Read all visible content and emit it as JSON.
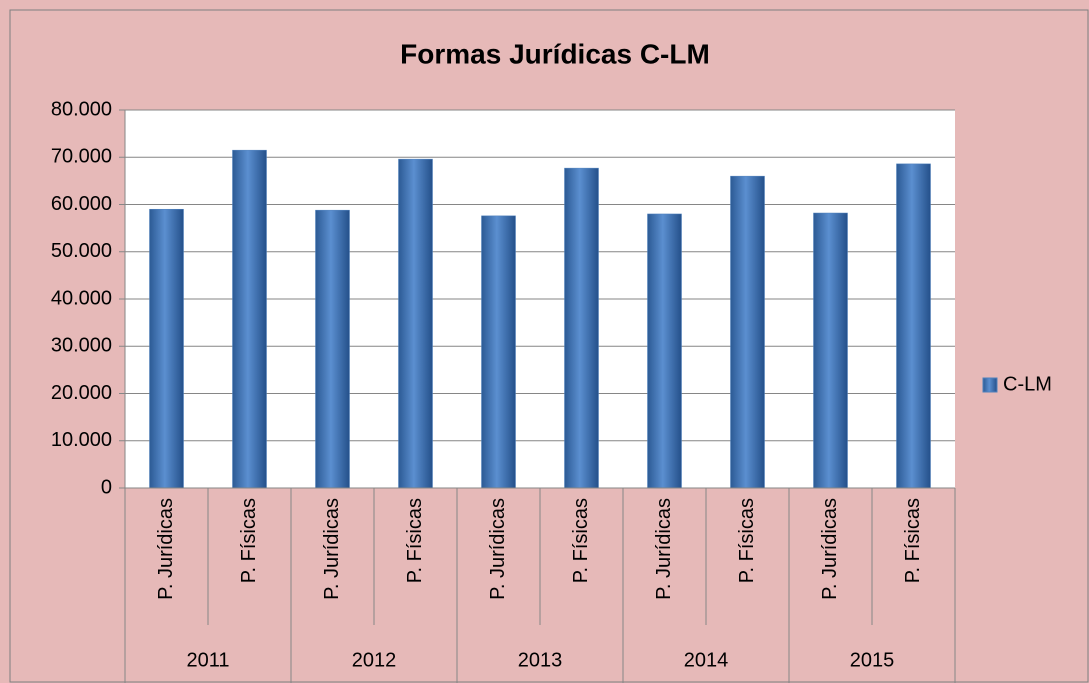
{
  "chart_data": {
    "type": "bar",
    "title": "Formas Jurídicas C-LM",
    "categories": [
      "P. Jurídicas",
      "P. Físicas",
      "P. Jurídicas",
      "P. Físicas",
      "P. Jurídicas",
      "P. Físicas",
      "P. Jurídicas",
      "P. Físicas",
      "P. Jurídicas",
      "P. Físicas"
    ],
    "groups": [
      "2011",
      "2012",
      "2013",
      "2014",
      "2015"
    ],
    "series": [
      {
        "name": "C-LM",
        "color": "#4f81bd",
        "values": [
          59000,
          71500,
          58800,
          69600,
          57600,
          67700,
          58000,
          66000,
          58200,
          68600
        ]
      }
    ],
    "ylim": [
      0,
      80000
    ],
    "yticks": [
      0,
      {
        "value": 10000,
        "label": "10.000"
      },
      {
        "value": 20000,
        "label": "20.000"
      },
      {
        "value": 30000,
        "label": "30.000"
      },
      {
        "value": 40000,
        "label": "40.000"
      },
      {
        "value": 50000,
        "label": "50.000"
      },
      {
        "value": 60000,
        "label": "60.000"
      },
      {
        "value": 70000,
        "label": "70.000"
      },
      {
        "value": 80000,
        "label": "80.000"
      }
    ],
    "grid": true,
    "legend": "right"
  }
}
